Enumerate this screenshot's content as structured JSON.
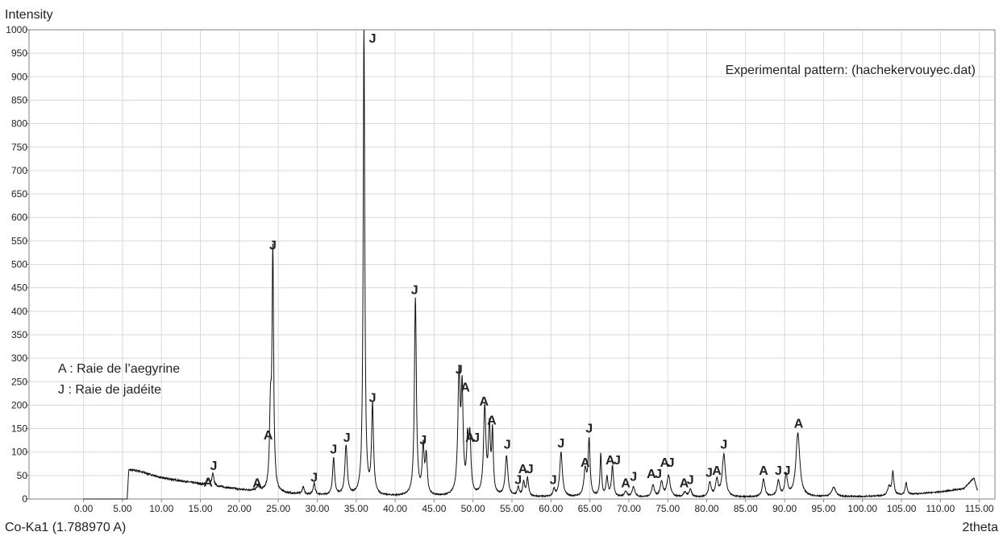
{
  "chart_data": {
    "type": "line",
    "ylabel": "Intensity",
    "xlabel": "2theta",
    "footnote": "Co-Ka1 (1.788970 A)",
    "annotation_title": "Experimental pattern: (hachekervouyec.dat)",
    "legend": [
      "A : Raie de l’aegyrine",
      "J : Raie de jadéite"
    ],
    "xlim": [
      -7,
      117
    ],
    "ylim": [
      0,
      1000
    ],
    "xticks": [
      0,
      5,
      10,
      15,
      20,
      25,
      30,
      35,
      40,
      45,
      50,
      55,
      60,
      65,
      70,
      75,
      80,
      85,
      90,
      95,
      100,
      105,
      110,
      115
    ],
    "xtick_labels": [
      "0.00",
      "5.00",
      "10.00",
      "15.00",
      "20.00",
      "25.00",
      "30.00",
      "35.00",
      "40.00",
      "45.00",
      "50.00",
      "55.00",
      "60.00",
      "65.00",
      "70.00",
      "75.00",
      "80.00",
      "85.00",
      "90.00",
      "95.00",
      "100.00",
      "105.00",
      "110.00",
      "115.00"
    ],
    "yticks": [
      0,
      50,
      100,
      150,
      200,
      250,
      300,
      350,
      400,
      450,
      500,
      550,
      600,
      650,
      700,
      750,
      800,
      850,
      900,
      950,
      1000
    ],
    "ytick_labels": [
      "0",
      "50",
      "100",
      "150",
      "200",
      "250",
      "300",
      "350",
      "400",
      "450",
      "500",
      "550",
      "600",
      "650",
      "700",
      "750",
      "800",
      "850",
      "900",
      "950",
      "1000"
    ],
    "grid": true,
    "background_start": 5.6,
    "background": [
      [
        5.6,
        0
      ],
      [
        5.8,
        62
      ],
      [
        7,
        60
      ],
      [
        10,
        45
      ],
      [
        15,
        32
      ],
      [
        20,
        20
      ],
      [
        25,
        12
      ],
      [
        30,
        8
      ],
      [
        35,
        6
      ],
      [
        45,
        5
      ],
      [
        60,
        4
      ],
      [
        80,
        3
      ],
      [
        100,
        5
      ],
      [
        105,
        8
      ],
      [
        110,
        15
      ],
      [
        113,
        22
      ],
      [
        114.3,
        45
      ],
      [
        114.7,
        20
      ]
    ],
    "peaks": [
      [
        16.0,
        12,
        0.15
      ],
      [
        16.6,
        25,
        0.15
      ],
      [
        22.4,
        10,
        0.2
      ],
      [
        24.0,
        160,
        0.15
      ],
      [
        24.3,
        500,
        0.12
      ],
      [
        28.2,
        15,
        0.15
      ],
      [
        29.6,
        25,
        0.15
      ],
      [
        32.1,
        80,
        0.15
      ],
      [
        33.7,
        105,
        0.18
      ],
      [
        36.0,
        1000,
        0.12
      ],
      [
        37.1,
        190,
        0.15
      ],
      [
        42.6,
        420,
        0.15
      ],
      [
        43.6,
        100,
        0.15
      ],
      [
        44.0,
        80,
        0.15
      ],
      [
        48.2,
        248,
        0.18
      ],
      [
        48.6,
        208,
        0.15
      ],
      [
        49.3,
        105,
        0.15
      ],
      [
        49.6,
        115,
        0.15
      ],
      [
        51.5,
        185,
        0.18
      ],
      [
        52.1,
        140,
        0.15
      ],
      [
        52.5,
        130,
        0.12
      ],
      [
        54.3,
        85,
        0.2
      ],
      [
        55.8,
        18,
        0.15
      ],
      [
        56.5,
        30,
        0.15
      ],
      [
        57.0,
        38,
        0.15
      ],
      [
        60.4,
        15,
        0.15
      ],
      [
        61.3,
        95,
        0.2
      ],
      [
        64.4,
        55,
        0.2
      ],
      [
        64.9,
        120,
        0.15
      ],
      [
        66.4,
        90,
        0.12
      ],
      [
        67.2,
        40,
        0.15
      ],
      [
        67.9,
        65,
        0.15
      ],
      [
        69.6,
        12,
        0.2
      ],
      [
        70.6,
        22,
        0.2
      ],
      [
        73.1,
        25,
        0.2
      ],
      [
        74.2,
        32,
        0.2
      ],
      [
        75.1,
        45,
        0.25
      ],
      [
        77.2,
        10,
        0.2
      ],
      [
        77.9,
        16,
        0.2
      ],
      [
        80.4,
        30,
        0.2
      ],
      [
        81.3,
        35,
        0.2
      ],
      [
        82.2,
        90,
        0.25
      ],
      [
        87.3,
        38,
        0.2
      ],
      [
        89.2,
        33,
        0.2
      ],
      [
        90.2,
        45,
        0.2
      ],
      [
        91.7,
        135,
        0.3
      ],
      [
        96.3,
        20,
        0.3
      ],
      [
        103.4,
        18,
        0.2
      ],
      [
        103.9,
        50,
        0.15
      ],
      [
        105.6,
        25,
        0.15
      ]
    ],
    "annotations": [
      {
        "text": "A",
        "x": 16.0,
        "y": 20
      },
      {
        "text": "J",
        "x": 16.7,
        "y": 55
      },
      {
        "text": "A",
        "x": 22.3,
        "y": 18
      },
      {
        "text": "A",
        "x": 23.7,
        "y": 120
      },
      {
        "text": "J",
        "x": 24.3,
        "y": 525
      },
      {
        "text": "J",
        "x": 29.6,
        "y": 30
      },
      {
        "text": "J",
        "x": 32.1,
        "y": 90
      },
      {
        "text": "J",
        "x": 33.8,
        "y": 115
      },
      {
        "text": "J",
        "x": 37.1,
        "y": 1000
      },
      {
        "text": "J",
        "x": 37.1,
        "y": 200
      },
      {
        "text": "J",
        "x": 42.5,
        "y": 430
      },
      {
        "text": "J",
        "x": 43.6,
        "y": 110
      },
      {
        "text": "J",
        "x": 48.2,
        "y": 260
      },
      {
        "text": "A",
        "x": 49.0,
        "y": 222
      },
      {
        "text": "A",
        "x": 49.6,
        "y": 115
      },
      {
        "text": "J",
        "x": 50.4,
        "y": 115
      },
      {
        "text": "A",
        "x": 51.4,
        "y": 192
      },
      {
        "text": "A",
        "x": 52.4,
        "y": 152
      },
      {
        "text": "J",
        "x": 54.4,
        "y": 100
      },
      {
        "text": "J",
        "x": 55.8,
        "y": 25
      },
      {
        "text": "A",
        "x": 56.4,
        "y": 48
      },
      {
        "text": "J",
        "x": 57.3,
        "y": 48
      },
      {
        "text": "J",
        "x": 60.3,
        "y": 25
      },
      {
        "text": "J",
        "x": 61.3,
        "y": 103
      },
      {
        "text": "A",
        "x": 64.4,
        "y": 62
      },
      {
        "text": "J",
        "x": 64.9,
        "y": 135
      },
      {
        "text": "A",
        "x": 67.6,
        "y": 67
      },
      {
        "text": "J",
        "x": 68.5,
        "y": 67
      },
      {
        "text": "A",
        "x": 69.6,
        "y": 18
      },
      {
        "text": "J",
        "x": 70.6,
        "y": 32
      },
      {
        "text": "A",
        "x": 72.9,
        "y": 38
      },
      {
        "text": "J",
        "x": 73.8,
        "y": 38
      },
      {
        "text": "A",
        "x": 74.6,
        "y": 62
      },
      {
        "text": "J",
        "x": 75.4,
        "y": 62
      },
      {
        "text": "A",
        "x": 77.1,
        "y": 18
      },
      {
        "text": "J",
        "x": 77.9,
        "y": 25
      },
      {
        "text": "J",
        "x": 80.3,
        "y": 40
      },
      {
        "text": "A",
        "x": 81.3,
        "y": 45
      },
      {
        "text": "J",
        "x": 82.2,
        "y": 100
      },
      {
        "text": "A",
        "x": 87.3,
        "y": 45
      },
      {
        "text": "J",
        "x": 89.2,
        "y": 45
      },
      {
        "text": "J",
        "x": 90.3,
        "y": 45
      },
      {
        "text": "A",
        "x": 91.8,
        "y": 145
      }
    ]
  }
}
